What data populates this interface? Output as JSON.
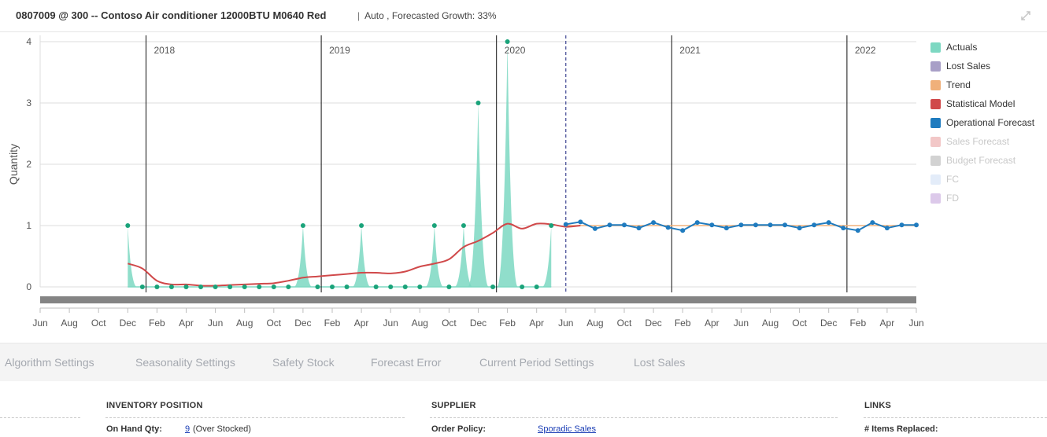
{
  "header": {
    "title": "0807009 @ 300 -- Contoso Air conditioner 12000BTU M0640 Red",
    "separator": "|",
    "subtitle": "Auto , Forecasted Growth: 33%",
    "expand_icon": "expand-diagonal-icon"
  },
  "chart_data": {
    "type": "area",
    "ylabel": "Quantity",
    "ylim": [
      0,
      4
    ],
    "yticks": [
      "0",
      "1",
      "2",
      "3",
      "4"
    ],
    "x_tick_labels": [
      "Jun",
      "Aug",
      "Oct",
      "Dec",
      "Feb",
      "Apr",
      "Jun",
      "Aug",
      "Oct",
      "Dec",
      "Feb",
      "Apr",
      "Jun",
      "Aug",
      "Oct",
      "Dec",
      "Feb",
      "Apr",
      "Jun",
      "Aug",
      "Oct",
      "Dec",
      "Feb",
      "Apr",
      "Jun",
      "Aug",
      "Oct",
      "Dec",
      "Feb",
      "Apr",
      "Jun"
    ],
    "year_labels": [
      "2018",
      "2019",
      "2020",
      "2021",
      "2022"
    ],
    "current_period_marker": "Jun 2020",
    "grid": true,
    "legend_position": "right",
    "series": [
      {
        "name": "Actuals",
        "color": "#7dd8c2",
        "x_start": "Dec 2017",
        "values": [
          1,
          0,
          0,
          0,
          0,
          0,
          0,
          0,
          0,
          0,
          0,
          0,
          1,
          0,
          0,
          0,
          1,
          0,
          0,
          0,
          0,
          1,
          0,
          1,
          3,
          0,
          4,
          0,
          0,
          1
        ]
      },
      {
        "name": "Lost Sales",
        "color": "#a89fc7",
        "values": []
      },
      {
        "name": "Trend",
        "color": "#f0b07a",
        "x_start": "Jun 2020",
        "values": [
          1,
          1,
          1,
          1,
          1,
          1,
          1,
          1,
          1,
          1,
          1,
          1,
          1,
          1,
          1,
          1,
          1,
          1,
          1,
          1,
          1,
          1,
          1,
          1,
          1
        ]
      },
      {
        "name": "Statistical Model",
        "color": "#d0494a",
        "x_start": "Dec 2017",
        "values": [
          0.38,
          0.3,
          0.1,
          0.04,
          0.04,
          0.02,
          0.02,
          0.03,
          0.04,
          0.05,
          0.06,
          0.1,
          0.15,
          0.17,
          0.19,
          0.21,
          0.23,
          0.23,
          0.22,
          0.25,
          0.33,
          0.38,
          0.45,
          0.65,
          0.75,
          0.88,
          1.03,
          0.95,
          1.03,
          1.02,
          0.98,
          1.0
        ]
      },
      {
        "name": "Operational Forecast",
        "color": "#1f7bbf",
        "x_start": "Jun 2020",
        "values": [
          1.02,
          1.06,
          0.95,
          1.01,
          1.01,
          0.96,
          1.05,
          0.97,
          0.92,
          1.05,
          1.01,
          0.96,
          1.01,
          1.01,
          1.01,
          1.01,
          0.96,
          1.01,
          1.05,
          0.96,
          0.92,
          1.05,
          0.96,
          1.01,
          1.01
        ]
      },
      {
        "name": "Sales Forecast",
        "color": "#f2c7c7",
        "values": []
      },
      {
        "name": "Budget Forecast",
        "color": "#d2d2d2",
        "values": []
      },
      {
        "name": "FC",
        "color": "#e3ecf9",
        "values": []
      },
      {
        "name": "FD",
        "color": "#dcc9ea",
        "values": []
      }
    ]
  },
  "legend": {
    "items": [
      {
        "label": "Actuals",
        "color": "#7dd8c2",
        "enabled": true
      },
      {
        "label": "Lost Sales",
        "color": "#a89fc7",
        "enabled": true
      },
      {
        "label": "Trend",
        "color": "#f0b07a",
        "enabled": true
      },
      {
        "label": "Statistical Model",
        "color": "#d0494a",
        "enabled": true
      },
      {
        "label": "Operational Forecast",
        "color": "#1f7bbf",
        "enabled": true
      },
      {
        "label": "Sales Forecast",
        "color": "#f2c7c7",
        "enabled": false
      },
      {
        "label": "Budget Forecast",
        "color": "#d2d2d2",
        "enabled": false
      },
      {
        "label": "FC",
        "color": "#e3ecf9",
        "enabled": false
      },
      {
        "label": "FD",
        "color": "#dcc9ea",
        "enabled": false
      }
    ]
  },
  "tabs": [
    {
      "label": "Algorithm Settings"
    },
    {
      "label": "Seasonality Settings"
    },
    {
      "label": "Safety Stock"
    },
    {
      "label": "Forecast Error"
    },
    {
      "label": "Current Period Settings"
    },
    {
      "label": "Lost Sales"
    }
  ],
  "sections": {
    "inventory": {
      "title": "INVENTORY POSITION",
      "on_hand_label": "On Hand Qty:",
      "on_hand_value": "9",
      "on_hand_note": "(Over Stocked)"
    },
    "supplier": {
      "title": "SUPPLIER",
      "order_policy_label": "Order Policy:",
      "order_policy_value": "Sporadic Sales"
    },
    "links": {
      "title": "LINKS",
      "items_replaced_label": "# Items Replaced:"
    }
  }
}
